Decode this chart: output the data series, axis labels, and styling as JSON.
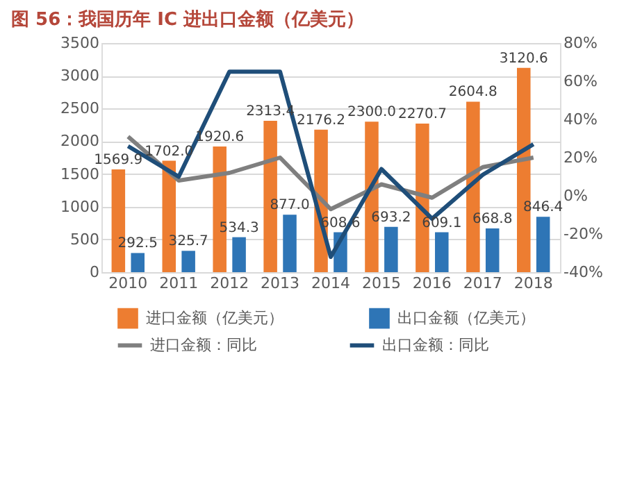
{
  "chart_data": {
    "type": "bar",
    "title": "图 56：我国历年 IC 进出口金额（亿美元）",
    "categories": [
      "2010",
      "2011",
      "2012",
      "2013",
      "2014",
      "2015",
      "2016",
      "2017",
      "2018"
    ],
    "series": [
      {
        "name": "进口金额（亿美元）",
        "color": "#ed7d31",
        "values": [
          1569.9,
          1702,
          1920.6,
          2313.4,
          2176.2,
          2300,
          2270.7,
          2604.8,
          3120.6
        ],
        "value_labels": [
          "1569.9",
          "1702.0",
          "1920.6",
          "2313.4",
          "2176.2",
          "2300.0",
          "2270.7",
          "2604.8",
          "3120.6"
        ]
      },
      {
        "name": "出口金额（亿美元）",
        "color": "#2e75b6",
        "values": [
          292.5,
          325.7,
          534.3,
          877,
          608.6,
          693.2,
          609.1,
          668.8,
          846.4
        ],
        "value_labels": [
          "292.5",
          "325.7",
          "534.3",
          "877.0",
          "608.6",
          "693.2",
          "609.1",
          "668.8",
          "846.4"
        ]
      },
      {
        "name": "进口金额：同比",
        "type": "line",
        "axis": "y2",
        "color": "#7f7f7f",
        "values": [
          31,
          8,
          12,
          20,
          -7,
          6,
          -1,
          15,
          20
        ]
      },
      {
        "name": "出口金额：同比",
        "type": "line",
        "axis": "y2",
        "color": "#1f4e79",
        "values": [
          26,
          10,
          65,
          65,
          -32,
          14,
          -12,
          11,
          27
        ]
      }
    ],
    "ylim": [
      0,
      3500
    ],
    "yticks": [
      0,
      500,
      1000,
      1500,
      2000,
      2500,
      3000,
      3500
    ],
    "y2lim": [
      -40,
      80
    ],
    "y2ticks": [
      {
        "value": -40,
        "label": "-40%"
      },
      {
        "value": -20,
        "label": "-20%"
      },
      {
        "value": 0,
        "label": "0%"
      },
      {
        "value": 20,
        "label": "20%"
      },
      {
        "value": 40,
        "label": "40%"
      },
      {
        "value": 60,
        "label": "60%"
      },
      {
        "value": 80,
        "label": "80%"
      }
    ],
    "grid": "y",
    "legend": "bottom",
    "marker": "none",
    "line_style": "solid"
  }
}
